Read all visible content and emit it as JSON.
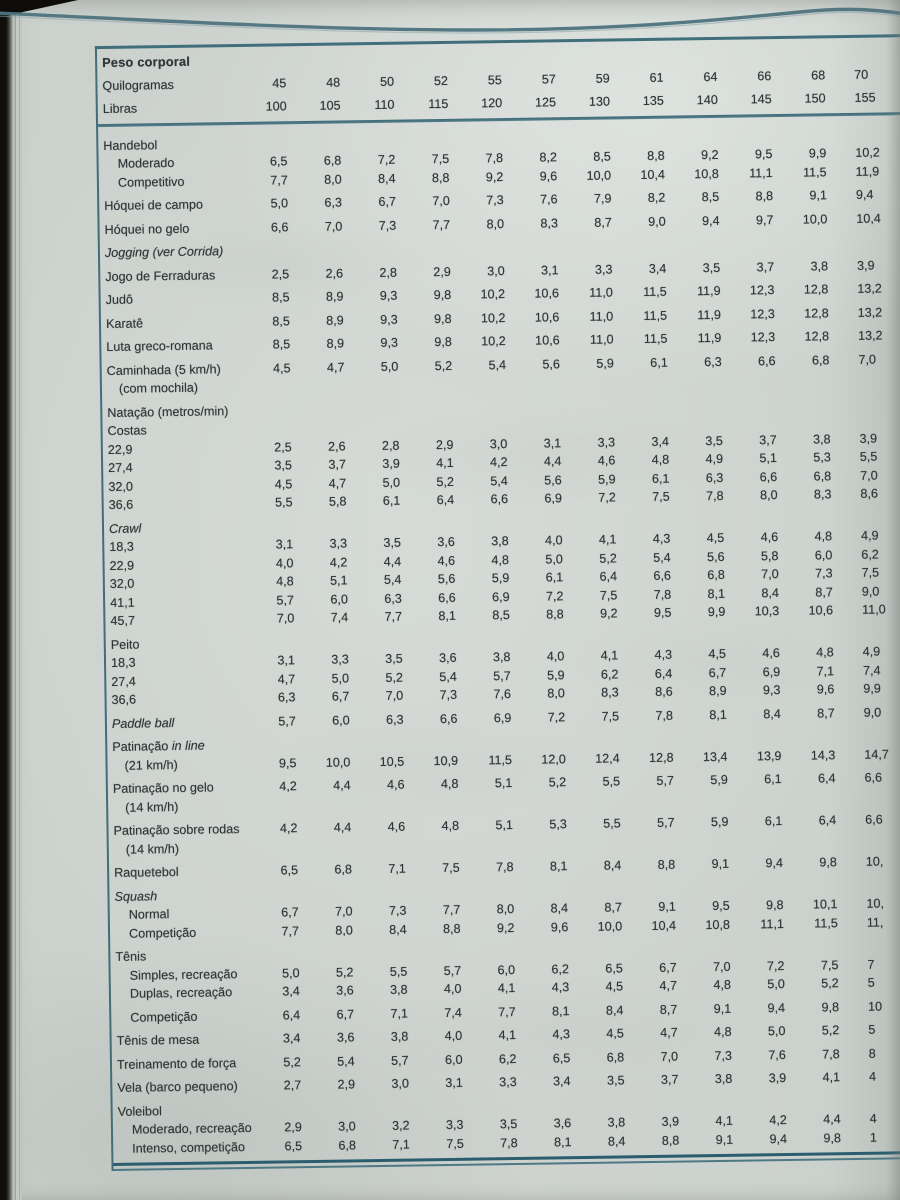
{
  "colors": {
    "accent_teal": "#416e7b"
  },
  "table": {
    "header": {
      "title": "Peso corporal",
      "kg_label": "Quilogramas",
      "kg_values": [
        "45",
        "48",
        "50",
        "52",
        "55",
        "57",
        "59",
        "61",
        "64",
        "66",
        "68",
        "70"
      ],
      "lb_label": "Libras",
      "lb_values": [
        "100",
        "105",
        "110",
        "115",
        "120",
        "125",
        "130",
        "135",
        "140",
        "145",
        "150",
        "155"
      ]
    },
    "rows": [
      {
        "label": "Handebol"
      },
      {
        "label": "Moderado",
        "ind": 1,
        "values": [
          "6,5",
          "6,8",
          "7,2",
          "7,5",
          "7,8",
          "8,2",
          "8,5",
          "8,8",
          "9,2",
          "9,5",
          "9,9",
          "10,2"
        ]
      },
      {
        "label": "Competitivo",
        "ind": 1,
        "values": [
          "7,7",
          "8,0",
          "8,4",
          "8,8",
          "9,2",
          "9,6",
          "10,0",
          "10,4",
          "10,8",
          "11,1",
          "11,5",
          "11,9"
        ]
      },
      {
        "label": "Hóquei de campo",
        "gap": true,
        "values": [
          "5,0",
          "6,3",
          "6,7",
          "7,0",
          "7,3",
          "7,6",
          "7,9",
          "8,2",
          "8,5",
          "8,8",
          "9,1",
          "9,4"
        ]
      },
      {
        "label": "Hóquei no gelo",
        "gap": true,
        "values": [
          "6,6",
          "7,0",
          "7,3",
          "7,7",
          "8,0",
          "8,3",
          "8,7",
          "9,0",
          "9,4",
          "9,7",
          "10,0",
          "10,4"
        ]
      },
      {
        "label": "Jogging (ver Corrida)",
        "it": true,
        "gap": true
      },
      {
        "label": "Jogo de Ferraduras",
        "gap": true,
        "values": [
          "2,5",
          "2,6",
          "2,8",
          "2,9",
          "3,0",
          "3,1",
          "3,3",
          "3,4",
          "3,5",
          "3,7",
          "3,8",
          "3,9"
        ]
      },
      {
        "label": "Judô",
        "gap": true,
        "values": [
          "8,5",
          "8,9",
          "9,3",
          "9,8",
          "10,2",
          "10,6",
          "11,0",
          "11,5",
          "11,9",
          "12,3",
          "12,8",
          "13,2"
        ]
      },
      {
        "label": "Karatê",
        "gap": true,
        "values": [
          "8,5",
          "8,9",
          "9,3",
          "9,8",
          "10,2",
          "10,6",
          "11,0",
          "11,5",
          "11,9",
          "12,3",
          "12,8",
          "13,2"
        ]
      },
      {
        "label": "Luta greco-romana",
        "gap": true,
        "values": [
          "8,5",
          "8,9",
          "9,3",
          "9,8",
          "10,2",
          "10,6",
          "11,0",
          "11,5",
          "11,9",
          "12,3",
          "12,8",
          "13,2"
        ]
      },
      {
        "label": "Caminhada (5 km/h)",
        "label2": "(com mochila)",
        "gap": true,
        "values": [
          "4,5",
          "4,7",
          "5,0",
          "5,2",
          "5,4",
          "5,6",
          "5,9",
          "6,1",
          "6,3",
          "6,6",
          "6,8",
          "7,0"
        ]
      },
      {
        "label": "Natação (metros/min)",
        "gap": true
      },
      {
        "label": "Costas"
      },
      {
        "label": "22,9",
        "values": [
          "2,5",
          "2,6",
          "2,8",
          "2,9",
          "3,0",
          "3,1",
          "3,3",
          "3,4",
          "3,5",
          "3,7",
          "3,8",
          "3,9"
        ]
      },
      {
        "label": "27,4",
        "values": [
          "3,5",
          "3,7",
          "3,9",
          "4,1",
          "4,2",
          "4,4",
          "4,6",
          "4,8",
          "4,9",
          "5,1",
          "5,3",
          "5,5"
        ]
      },
      {
        "label": "32,0",
        "values": [
          "4,5",
          "4,7",
          "5,0",
          "5,2",
          "5,4",
          "5,6",
          "5,9",
          "6,1",
          "6,3",
          "6,6",
          "6,8",
          "7,0"
        ]
      },
      {
        "label": "36,6",
        "values": [
          "5,5",
          "5,8",
          "6,1",
          "6,4",
          "6,6",
          "6,9",
          "7,2",
          "7,5",
          "7,8",
          "8,0",
          "8,3",
          "8,6"
        ]
      },
      {
        "label": "Crawl",
        "it": true,
        "gap": true
      },
      {
        "label": "18,3",
        "values": [
          "3,1",
          "3,3",
          "3,5",
          "3,6",
          "3,8",
          "4,0",
          "4,1",
          "4,3",
          "4,5",
          "4,6",
          "4,8",
          "4,9"
        ]
      },
      {
        "label": "22,9",
        "values": [
          "4,0",
          "4,2",
          "4,4",
          "4,6",
          "4,8",
          "5,0",
          "5,2",
          "5,4",
          "5,6",
          "5,8",
          "6,0",
          "6,2"
        ]
      },
      {
        "label": "32,0",
        "values": [
          "4,8",
          "5,1",
          "5,4",
          "5,6",
          "5,9",
          "6,1",
          "6,4",
          "6,6",
          "6,8",
          "7,0",
          "7,3",
          "7,5"
        ]
      },
      {
        "label": "41,1",
        "values": [
          "5,7",
          "6,0",
          "6,3",
          "6,6",
          "6,9",
          "7,2",
          "7,5",
          "7,8",
          "8,1",
          "8,4",
          "8,7",
          "9,0"
        ]
      },
      {
        "label": "45,7",
        "values": [
          "7,0",
          "7,4",
          "7,7",
          "8,1",
          "8,5",
          "8,8",
          "9,2",
          "9,5",
          "9,9",
          "10,3",
          "10,6",
          "11,0"
        ]
      },
      {
        "label": "Peito",
        "gap": true
      },
      {
        "label": "18,3",
        "values": [
          "3,1",
          "3,3",
          "3,5",
          "3,6",
          "3,8",
          "4,0",
          "4,1",
          "4,3",
          "4,5",
          "4,6",
          "4,8",
          "4,9"
        ]
      },
      {
        "label": "27,4",
        "values": [
          "4,7",
          "5,0",
          "5,2",
          "5,4",
          "5,7",
          "5,9",
          "6,2",
          "6,4",
          "6,7",
          "6,9",
          "7,1",
          "7,4"
        ]
      },
      {
        "label": "36,6",
        "values": [
          "6,3",
          "6,7",
          "7,0",
          "7,3",
          "7,6",
          "8,0",
          "8,3",
          "8,6",
          "8,9",
          "9,3",
          "9,6",
          "9,9"
        ]
      },
      {
        "label": "Paddle ball",
        "it": true,
        "gap": true,
        "values": [
          "5,7",
          "6,0",
          "6,3",
          "6,6",
          "6,9",
          "7,2",
          "7,5",
          "7,8",
          "8,1",
          "8,4",
          "8,7",
          "9,0"
        ]
      },
      {
        "label": "Patinação ",
        "it2": "in line",
        "label2": "(21 km/h)",
        "gap": true,
        "v2": true,
        "values": [
          "9,5",
          "10,0",
          "10,5",
          "10,9",
          "11,5",
          "12,0",
          "12,4",
          "12,8",
          "13,4",
          "13,9",
          "14,3",
          "14,7"
        ]
      },
      {
        "label": "Patinação no gelo",
        "label2": "(14 km/h)",
        "gap": true,
        "values": [
          "4,2",
          "4,4",
          "4,6",
          "4,8",
          "5,1",
          "5,2",
          "5,5",
          "5,7",
          "5,9",
          "6,1",
          "6,4",
          "6,6"
        ]
      },
      {
        "label": "Patinação sobre rodas",
        "label2": "(14 km/h)",
        "gap": true,
        "values": [
          "4,2",
          "4,4",
          "4,6",
          "4,8",
          "5,1",
          "5,3",
          "5,5",
          "5,7",
          "5,9",
          "6,1",
          "6,4",
          "6,6"
        ]
      },
      {
        "label": "Raquetebol",
        "gap": true,
        "values": [
          "6,5",
          "6,8",
          "7,1",
          "7,5",
          "7,8",
          "8,1",
          "8,4",
          "8,8",
          "9,1",
          "9,4",
          "9,8",
          "10,"
        ]
      },
      {
        "label": "Squash",
        "it": true,
        "gap": true
      },
      {
        "label": "Normal",
        "ind": 1,
        "values": [
          "6,7",
          "7,0",
          "7,3",
          "7,7",
          "8,0",
          "8,4",
          "8,7",
          "9,1",
          "9,5",
          "9,8",
          "10,1",
          "10,"
        ]
      },
      {
        "label": "Competição",
        "ind": 1,
        "values": [
          "7,7",
          "8,0",
          "8,4",
          "8,8",
          "9,2",
          "9,6",
          "10,0",
          "10,4",
          "10,8",
          "11,1",
          "11,5",
          "11,"
        ]
      },
      {
        "label": "Tênis",
        "gap": true
      },
      {
        "label": "Simples, recreação",
        "ind": 1,
        "values": [
          "5,0",
          "5,2",
          "5,5",
          "5,7",
          "6,0",
          "6,2",
          "6,5",
          "6,7",
          "7,0",
          "7,2",
          "7,5",
          "7"
        ]
      },
      {
        "label": "Duplas, recreação",
        "ind": 1,
        "values": [
          "3,4",
          "3,6",
          "3,8",
          "4,0",
          "4,1",
          "4,3",
          "4,5",
          "4,7",
          "4,8",
          "5,0",
          "5,2",
          "5"
        ]
      },
      {
        "label": "Competição",
        "ind": 1,
        "gap": true,
        "values": [
          "6,4",
          "6,7",
          "7,1",
          "7,4",
          "7,7",
          "8,1",
          "8,4",
          "8,7",
          "9,1",
          "9,4",
          "9,8",
          "10"
        ]
      },
      {
        "label": "Tênis de mesa",
        "gap": true,
        "values": [
          "3,4",
          "3,6",
          "3,8",
          "4,0",
          "4,1",
          "4,3",
          "4,5",
          "4,7",
          "4,8",
          "5,0",
          "5,2",
          "5"
        ]
      },
      {
        "label": "Treinamento de força",
        "gap": true,
        "values": [
          "5,2",
          "5,4",
          "5,7",
          "6,0",
          "6,2",
          "6,5",
          "6,8",
          "7,0",
          "7,3",
          "7,6",
          "7,8",
          "8"
        ]
      },
      {
        "label": "Vela (barco pequeno)",
        "gap": true,
        "values": [
          "2,7",
          "2,9",
          "3,0",
          "3,1",
          "3,3",
          "3,4",
          "3,5",
          "3,7",
          "3,8",
          "3,9",
          "4,1",
          "4"
        ]
      },
      {
        "label": "Voleibol",
        "gap": true
      },
      {
        "label": "Moderado, recreação",
        "ind": 1,
        "values": [
          "2,9",
          "3,0",
          "3,2",
          "3,3",
          "3,5",
          "3,6",
          "3,8",
          "3,9",
          "4,1",
          "4,2",
          "4,4",
          "4"
        ]
      },
      {
        "label": "Intenso, competição",
        "ind": 1,
        "values": [
          "6,5",
          "6,8",
          "7,1",
          "7,5",
          "7,8",
          "8,1",
          "8,4",
          "8,8",
          "9,1",
          "9,4",
          "9,8",
          "1"
        ]
      }
    ]
  }
}
